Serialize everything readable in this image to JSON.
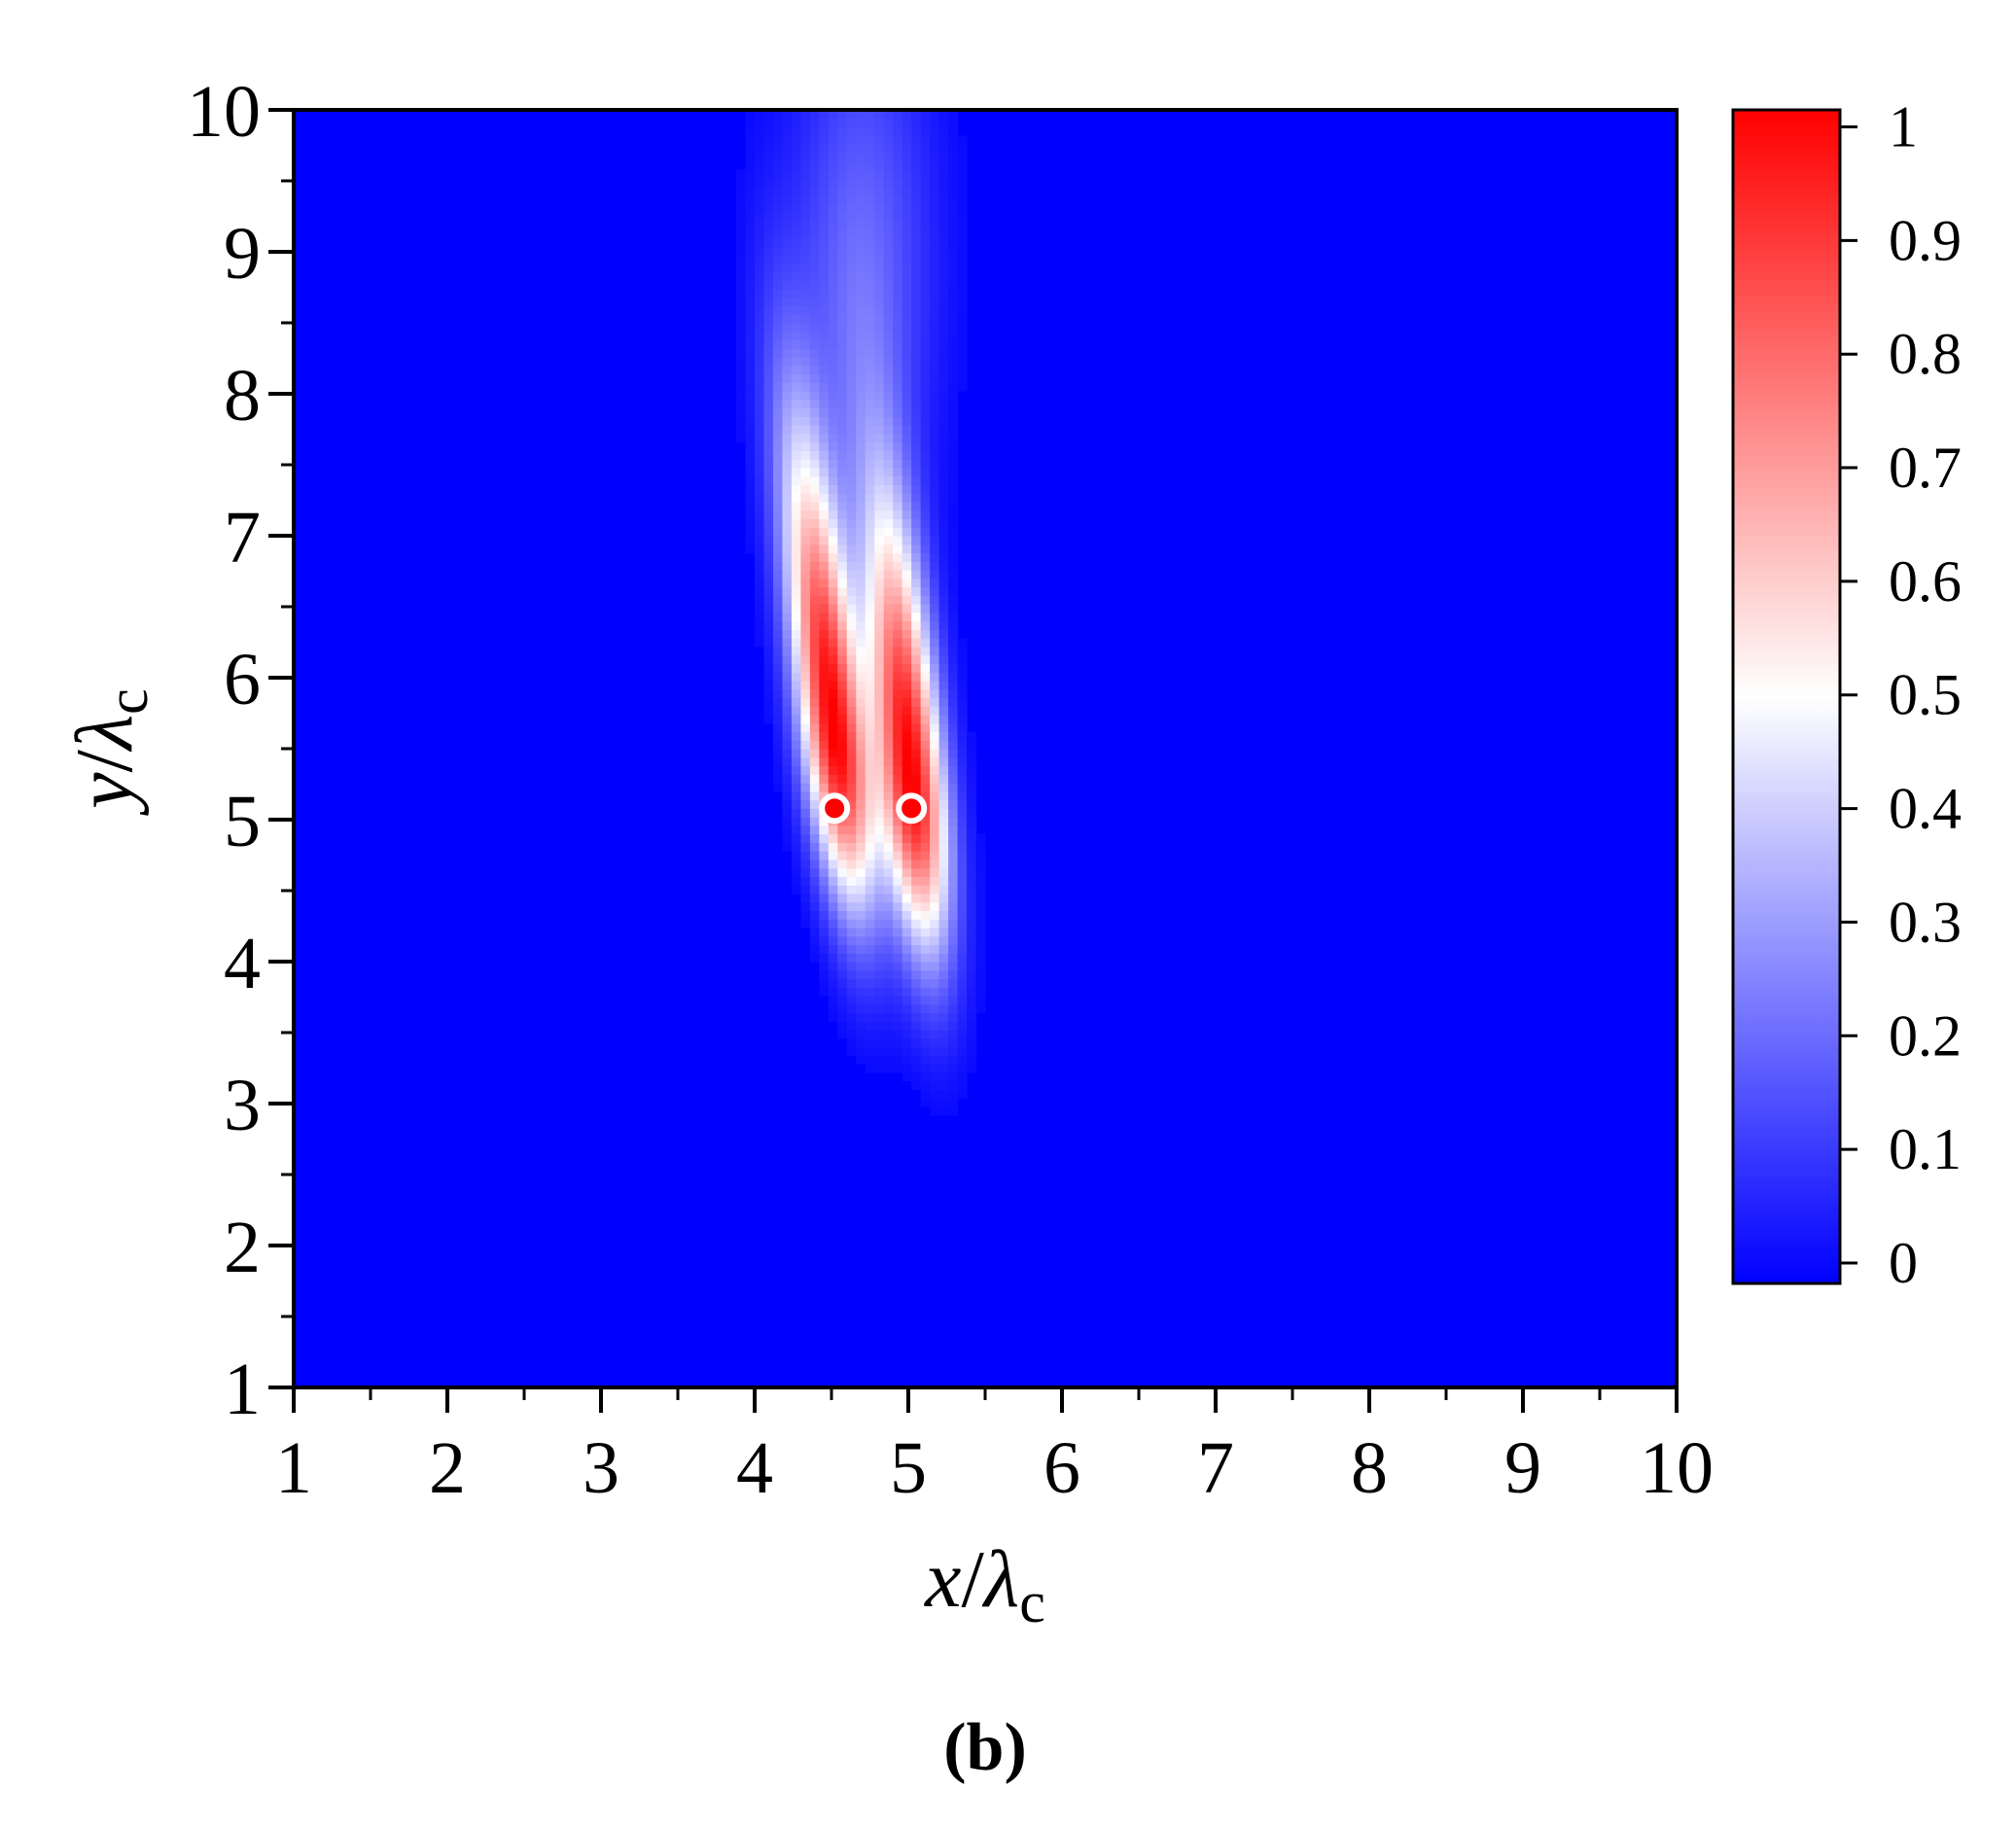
{
  "chart_data": {
    "type": "heatmap",
    "panel_label": "(b)",
    "xlabel": {
      "var": "x",
      "sep": "/",
      "sym": "λ",
      "sub": "c"
    },
    "ylabel": {
      "var": "y",
      "sep": "/",
      "sym": "λ",
      "sub": "c"
    },
    "xlim": [
      1,
      10
    ],
    "ylim": [
      1,
      10
    ],
    "x_ticks": [
      1,
      2,
      3,
      4,
      5,
      6,
      7,
      8,
      9,
      10
    ],
    "y_ticks": [
      1,
      2,
      3,
      4,
      5,
      6,
      7,
      8,
      9,
      10
    ],
    "x_tick_labels": [
      "1",
      "2",
      "3",
      "4",
      "5",
      "6",
      "7",
      "8",
      "9",
      "10"
    ],
    "y_tick_labels": [
      "1",
      "2",
      "3",
      "4",
      "5",
      "6",
      "7",
      "8",
      "9",
      "10"
    ],
    "colorbar": {
      "min": 0,
      "max": 1,
      "ticks": [
        0,
        0.1,
        0.2,
        0.3,
        0.4,
        0.5,
        0.6,
        0.7,
        0.8,
        0.9,
        1
      ],
      "tick_labels": [
        "0",
        "0.1",
        "0.2",
        "0.3",
        "0.4",
        "0.5",
        "0.6",
        "0.7",
        "0.8",
        "0.9",
        "1"
      ],
      "colormap": [
        "#0000ff",
        "#ffffff",
        "#ff0000"
      ]
    },
    "field_components": [
      {
        "x": 4.52,
        "y": 5.6,
        "sx": 0.15,
        "sy_up": 1.45,
        "sy_down": 0.85,
        "amp": 1.0,
        "tilt": -0.11
      },
      {
        "x": 5.02,
        "y": 5.3,
        "sx": 0.15,
        "sy_up": 1.35,
        "sy_down": 0.85,
        "amp": 1.0,
        "tilt": -0.09
      },
      {
        "x": 4.7,
        "y": 8.9,
        "sx": 0.32,
        "sy_up": 1.3,
        "sy_down": 1.3,
        "amp": 0.2,
        "tilt": 0.0
      }
    ],
    "markers": [
      {
        "x": 4.52,
        "y": 5.08,
        "color": "#ff0000",
        "edge": "#ffffff"
      },
      {
        "x": 5.02,
        "y": 5.08,
        "color": "#ff0000",
        "edge": "#ffffff"
      }
    ],
    "grid": false
  }
}
